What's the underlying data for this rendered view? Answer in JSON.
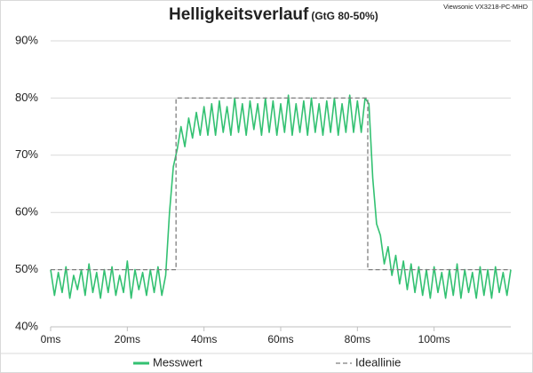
{
  "chart_data": {
    "type": "line",
    "title": "Helligkeitsverlauf",
    "subtitle": "(GtG 80-50%)",
    "annotation": "Viewsonic VX3218-PC-MHD",
    "xlim": [
      0,
      120
    ],
    "xticks": [
      {
        "value": 0,
        "label": "0ms"
      },
      {
        "value": 20,
        "label": "20ms"
      },
      {
        "value": 40,
        "label": "40ms"
      },
      {
        "value": 60,
        "label": "60ms"
      },
      {
        "value": 80,
        "label": "80ms"
      },
      {
        "value": 100,
        "label": "100ms"
      }
    ],
    "ylim": [
      40,
      90
    ],
    "yticks": [
      {
        "value": 40,
        "label": "40%"
      },
      {
        "value": 50,
        "label": "50%"
      },
      {
        "value": 60,
        "label": "60%"
      },
      {
        "value": 70,
        "label": "70%"
      },
      {
        "value": 80,
        "label": "80%"
      },
      {
        "value": 90,
        "label": "90%"
      }
    ],
    "grid": true,
    "legend": "bottom",
    "series": [
      {
        "name": "Messwert",
        "color": "#33c172",
        "dash": false,
        "x": [
          0,
          1,
          2,
          3,
          4,
          5,
          6,
          7,
          8,
          9,
          10,
          11,
          12,
          13,
          14,
          15,
          16,
          17,
          18,
          19,
          20,
          21,
          22,
          23,
          24,
          25,
          26,
          27,
          28,
          29,
          30,
          31,
          32,
          33,
          34,
          35,
          36,
          37,
          38,
          39,
          40,
          41,
          42,
          43,
          44,
          45,
          46,
          47,
          48,
          49,
          50,
          51,
          52,
          53,
          54,
          55,
          56,
          57,
          58,
          59,
          60,
          61,
          62,
          63,
          64,
          65,
          66,
          67,
          68,
          69,
          70,
          71,
          72,
          73,
          74,
          75,
          76,
          77,
          78,
          79,
          80,
          81,
          82,
          83,
          84,
          85,
          86,
          87,
          88,
          89,
          90,
          91,
          92,
          93,
          94,
          95,
          96,
          97,
          98,
          99,
          100,
          101,
          102,
          103,
          104,
          105,
          106,
          107,
          108,
          109,
          110,
          111,
          112,
          113,
          114,
          115,
          116,
          117,
          118,
          119,
          120
        ],
        "values": [
          50,
          45.5,
          49.5,
          46,
          50.5,
          45,
          49,
          46.5,
          50,
          45.5,
          51,
          46,
          49.5,
          45,
          50,
          46,
          50.5,
          45.5,
          49,
          46,
          51.5,
          45,
          50,
          46.5,
          49.5,
          45.5,
          50,
          46,
          50.5,
          45.5,
          49,
          60,
          68,
          71,
          75,
          71.5,
          76.5,
          73,
          77.5,
          73.5,
          78.5,
          73.5,
          79,
          73.5,
          79.5,
          74,
          78.5,
          73.5,
          80,
          74,
          79,
          73.5,
          79.5,
          74.5,
          79,
          73.5,
          80,
          74,
          79.5,
          73.5,
          79,
          74,
          80.5,
          73.5,
          79,
          74,
          79.5,
          73.5,
          80,
          74,
          79,
          73.5,
          79.5,
          74,
          80,
          73.5,
          79,
          74,
          80.5,
          74,
          79.5,
          74,
          80,
          79,
          66,
          58,
          56,
          51,
          54,
          49,
          52.5,
          47.5,
          51.5,
          46.5,
          51,
          46,
          50.5,
          45.5,
          50,
          45,
          50.5,
          46,
          49.5,
          45,
          50,
          45.5,
          51,
          45,
          50,
          46,
          49.5,
          45,
          50.5,
          45.5,
          50,
          45,
          50.5,
          46,
          49.5,
          45.5,
          50
        ]
      },
      {
        "name": "Ideallinie",
        "color": "#7f7f7f",
        "dash": true,
        "x": [
          0,
          32.7,
          32.7,
          82.7,
          82.7,
          120
        ],
        "values": [
          50,
          50,
          80,
          80,
          50,
          50
        ]
      }
    ]
  }
}
